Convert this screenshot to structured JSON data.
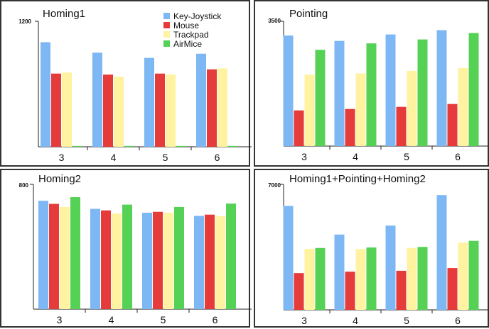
{
  "colors": {
    "Key-Joystick": "#7DB8F5",
    "Mouse": "#E53B3B",
    "Trackpad": "#FFF2A0",
    "AirMice": "#55D255"
  },
  "legend": [
    "Key-Joystick",
    "Mouse",
    "Trackpad",
    "AirMice"
  ],
  "chart_data": [
    {
      "type": "bar",
      "title": "Homing1",
      "ymax_label": "1200",
      "ylim": [
        0,
        1200
      ],
      "categories": [
        "3",
        "4",
        "5",
        "6"
      ],
      "series": [
        {
          "name": "Key-Joystick",
          "values": [
            1000,
            900,
            850,
            890
          ]
        },
        {
          "name": "Mouse",
          "values": [
            700,
            690,
            700,
            740
          ]
        },
        {
          "name": "Trackpad",
          "values": [
            710,
            670,
            690,
            750
          ]
        },
        {
          "name": "AirMice",
          "values": [
            0,
            0,
            0,
            0
          ]
        }
      ]
    },
    {
      "type": "bar",
      "title": "Pointing",
      "ymax_label": "3500",
      "ylim": [
        0,
        3500
      ],
      "categories": [
        "3",
        "4",
        "5",
        "6"
      ],
      "series": [
        {
          "name": "Key-Joystick",
          "values": [
            3100,
            2950,
            3130,
            3250
          ]
        },
        {
          "name": "Mouse",
          "values": [
            1000,
            1040,
            1100,
            1180
          ]
        },
        {
          "name": "Trackpad",
          "values": [
            2000,
            2040,
            2110,
            2190
          ]
        },
        {
          "name": "AirMice",
          "values": [
            2700,
            2880,
            2990,
            3170
          ]
        }
      ]
    },
    {
      "type": "bar",
      "title": "Homing2",
      "ymax_label": "800",
      "ylim": [
        0,
        800
      ],
      "categories": [
        "3",
        "4",
        "5",
        "6"
      ],
      "series": [
        {
          "name": "Key-Joystick",
          "values": [
            695,
            643,
            618,
            598
          ]
        },
        {
          "name": "Mouse",
          "values": [
            675,
            633,
            624,
            606
          ]
        },
        {
          "name": "Trackpad",
          "values": [
            655,
            613,
            618,
            596
          ]
        },
        {
          "name": "AirMice",
          "values": [
            718,
            670,
            655,
            677
          ]
        }
      ]
    },
    {
      "type": "bar",
      "title": "Homing1+Pointing+Homing2",
      "ymax_label": "7000",
      "ylim": [
        0,
        7000
      ],
      "categories": [
        "3",
        "4",
        "5",
        "6"
      ],
      "series": [
        {
          "name": "Key-Joystick",
          "values": [
            5800,
            4200,
            4700,
            6400
          ]
        },
        {
          "name": "Mouse",
          "values": [
            2050,
            2130,
            2180,
            2330
          ]
        },
        {
          "name": "Trackpad",
          "values": [
            3400,
            3390,
            3450,
            3750
          ]
        },
        {
          "name": "AirMice",
          "values": [
            3450,
            3480,
            3510,
            3850
          ]
        }
      ]
    }
  ]
}
